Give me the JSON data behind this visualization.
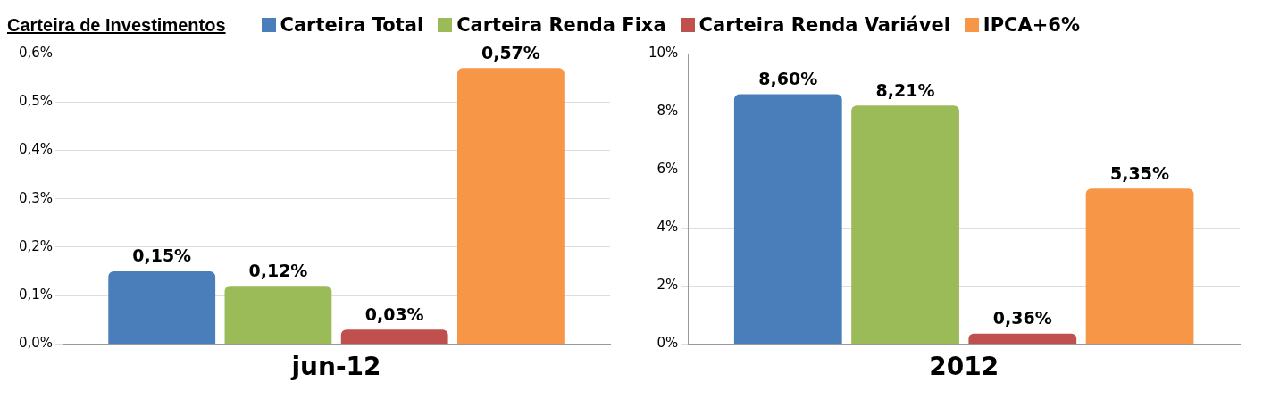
{
  "chart_data": [
    {
      "type": "bar",
      "title": "Carteira de Investimentos",
      "categories": [
        "jun-12"
      ],
      "legend": "top",
      "grid": "y",
      "ylim": [
        0,
        0.6
      ],
      "yticks": [
        {
          "value": 0,
          "label": "0,0%"
        },
        {
          "value": 0.1,
          "label": "0,1%"
        },
        {
          "value": 0.2,
          "label": "0,2%"
        },
        {
          "value": 0.3,
          "label": "0,3%"
        },
        {
          "value": 0.4,
          "label": "0,4%"
        },
        {
          "value": 0.5,
          "label": "0,5%"
        },
        {
          "value": 0.6,
          "label": "0,6%"
        }
      ],
      "series": [
        {
          "name": "Carteira Total",
          "color": "#4a7ebb",
          "values": [
            0.15
          ],
          "value_labels": [
            "0,15%"
          ]
        },
        {
          "name": "Carteira Renda Fixa",
          "color": "#9bbb59",
          "values": [
            0.12
          ],
          "value_labels": [
            "0,12%"
          ]
        },
        {
          "name": "Carteira Renda Variável",
          "color": "#c0504d",
          "values": [
            0.03
          ],
          "value_labels": [
            "0,03%"
          ]
        },
        {
          "name": "IPCA+6%",
          "color": "#f79646",
          "values": [
            0.57
          ],
          "value_labels": [
            "0,57%"
          ]
        }
      ]
    },
    {
      "type": "bar",
      "categories": [
        "2012"
      ],
      "grid": "y",
      "ylim": [
        0,
        10
      ],
      "yticks": [
        {
          "value": 0,
          "label": "0%"
        },
        {
          "value": 2,
          "label": "2%"
        },
        {
          "value": 4,
          "label": "4%"
        },
        {
          "value": 6,
          "label": "6%"
        },
        {
          "value": 8,
          "label": "8%"
        },
        {
          "value": 10,
          "label": "10%"
        }
      ],
      "series": [
        {
          "color": "#4a7ebb",
          "values": [
            8.6
          ],
          "value_labels": [
            "8,60%"
          ]
        },
        {
          "color": "#9bbb59",
          "values": [
            8.21
          ],
          "value_labels": [
            "8,21%"
          ]
        },
        {
          "color": "#c0504d",
          "values": [
            0.36
          ],
          "value_labels": [
            "0,36%"
          ]
        },
        {
          "color": "#f79646",
          "values": [
            5.35
          ],
          "value_labels": [
            "5,35%"
          ]
        }
      ]
    }
  ]
}
